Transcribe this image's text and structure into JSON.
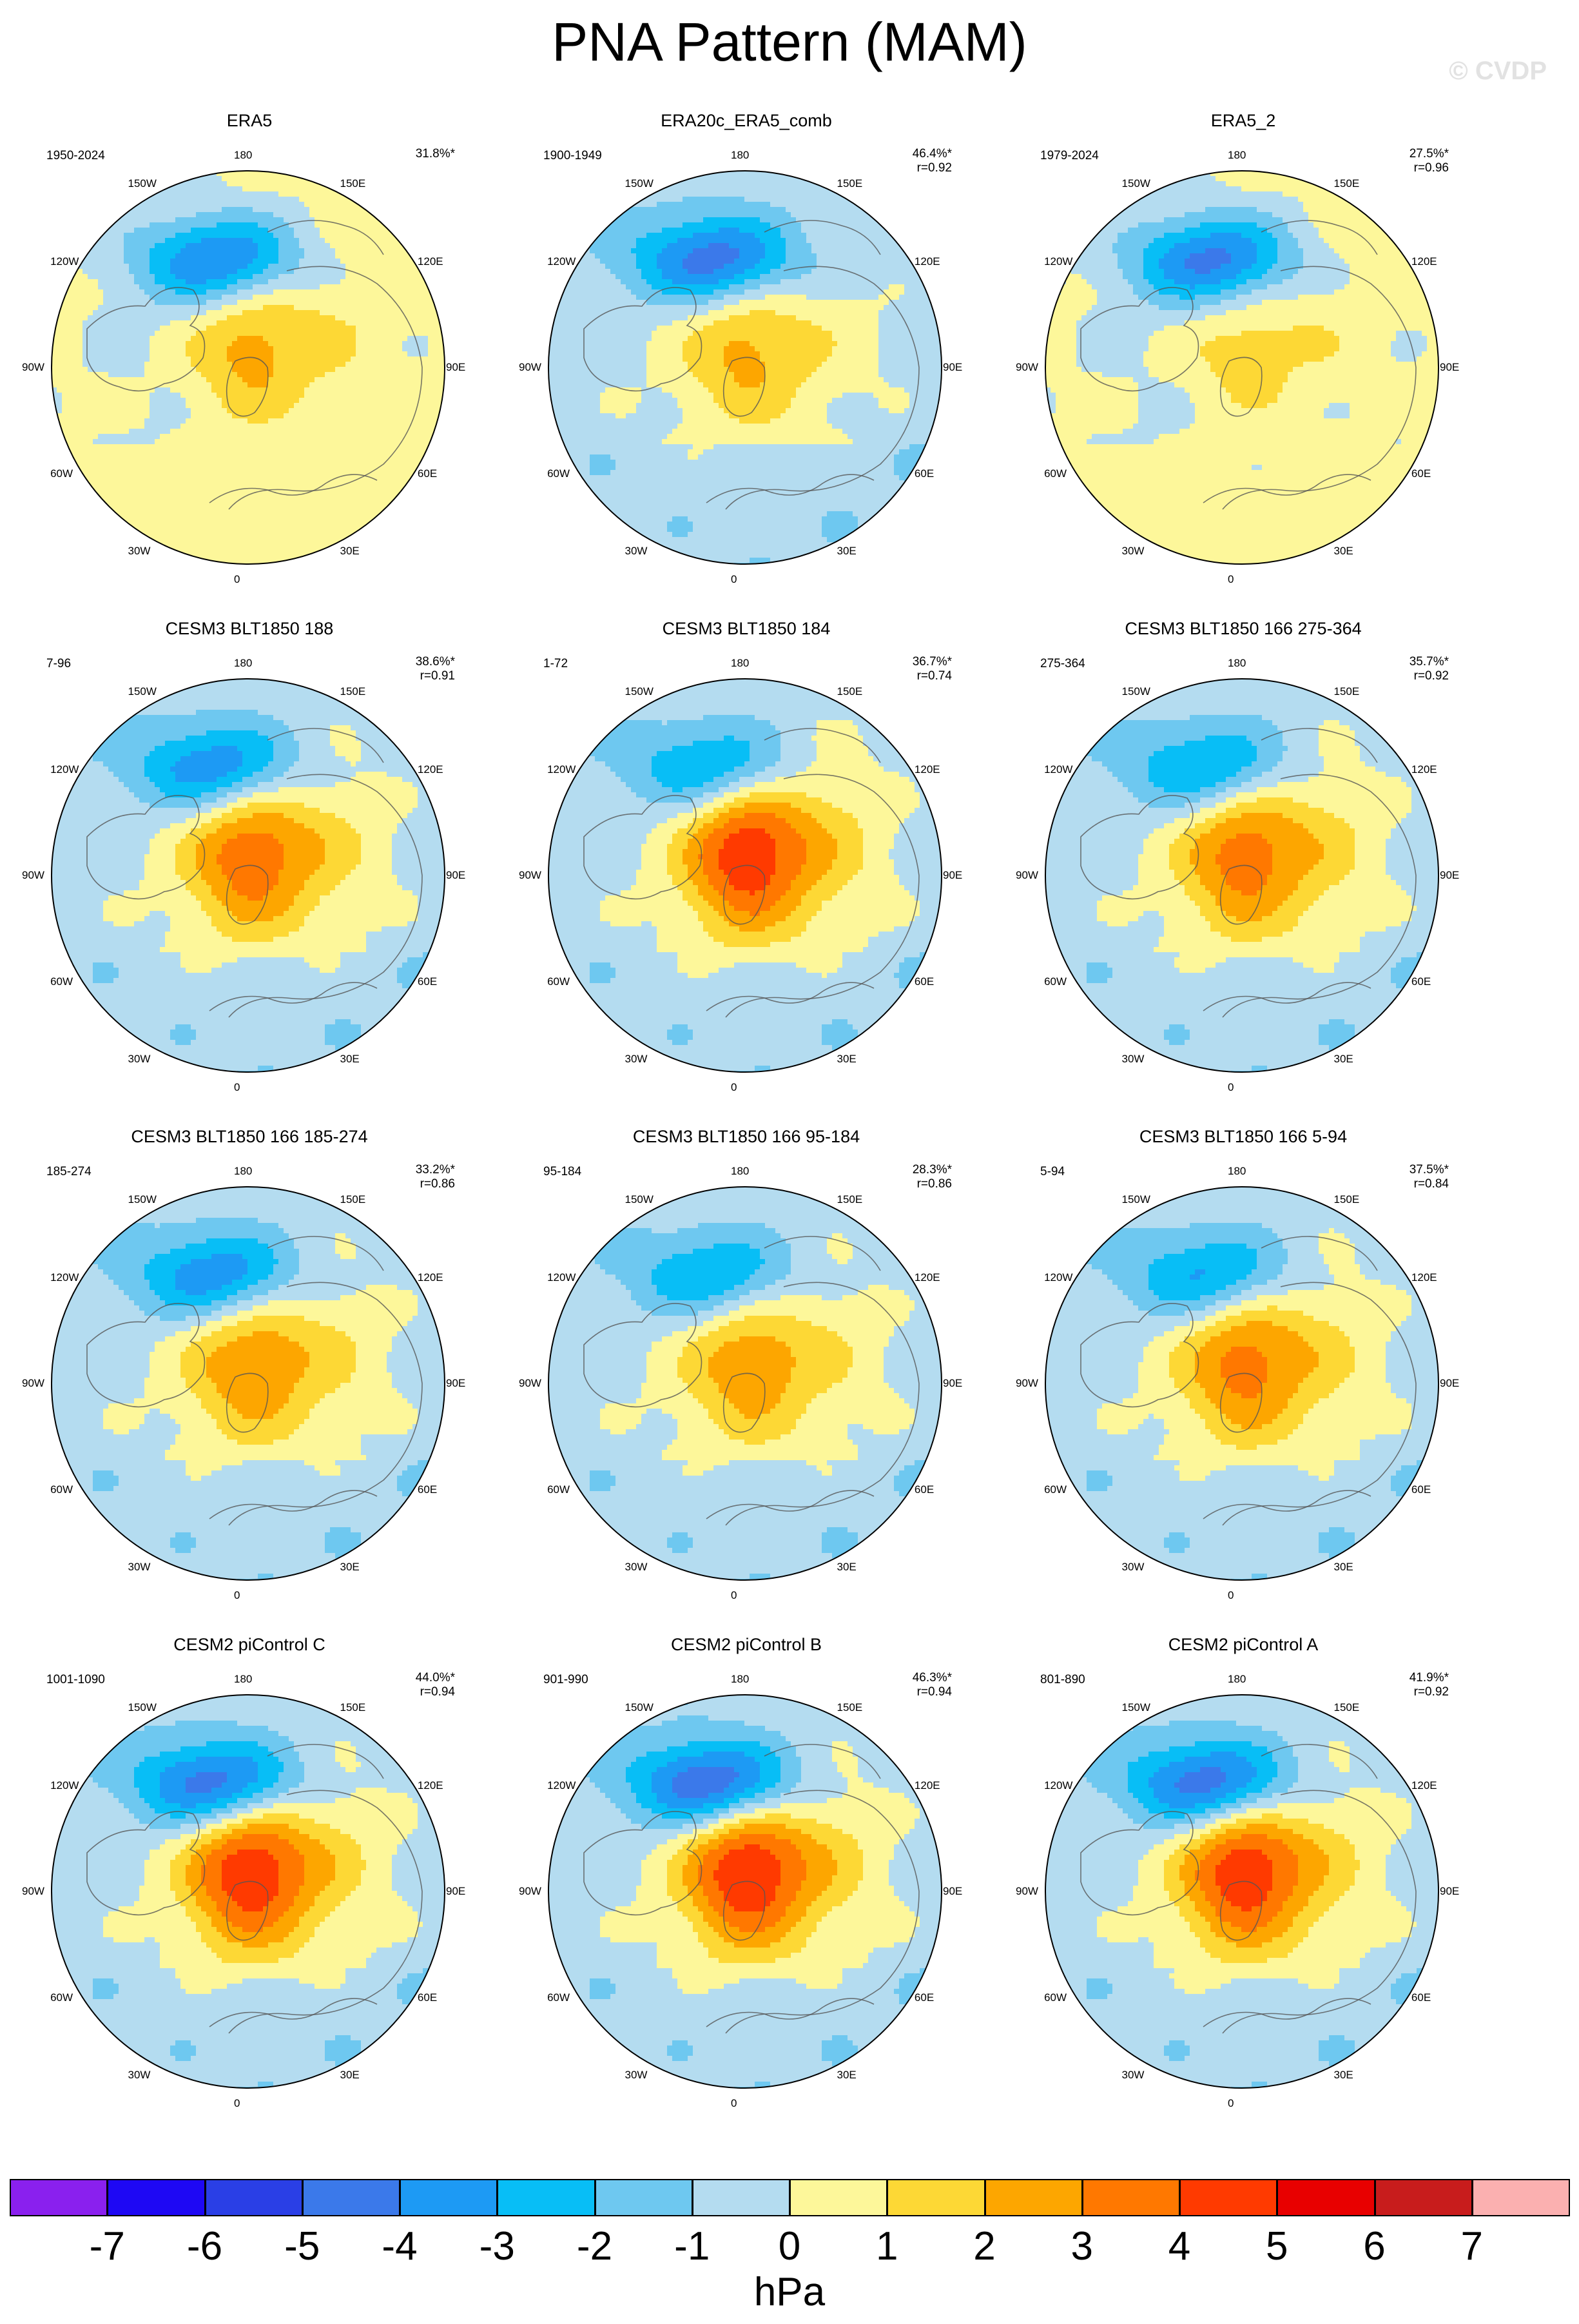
{
  "title": "PNA Pattern (MAM)",
  "watermark": "© CVDP",
  "colorbar": {
    "ticks": [
      "-7",
      "-6",
      "-5",
      "-4",
      "-3",
      "-2",
      "-1",
      "0",
      "1",
      "2",
      "3",
      "4",
      "5",
      "6",
      "7"
    ],
    "colors": [
      "#8a20ee",
      "#1e08f4",
      "#2a3fe6",
      "#3b79ea",
      "#1d9af4",
      "#08bef6",
      "#6ec8f0",
      "#b4dcf0",
      "#fdf79a",
      "#fdd835",
      "#fda600",
      "#ff7800",
      "#ff3a00",
      "#e80000",
      "#c81c1c",
      "#fbb0b0"
    ],
    "units": "hPa"
  },
  "colors": {
    "land_outline": "#555555",
    "map_border": "#000000",
    "background": "#ffffff"
  },
  "longitude_labels": [
    "180",
    "150E",
    "120E",
    "90E",
    "60E",
    "30E",
    "0",
    "30W",
    "60W",
    "90W",
    "120W",
    "150W"
  ],
  "panels": [
    {
      "title": "ERA5",
      "period": "1950-2024",
      "pct": "31.8%*",
      "r": "",
      "pattern": {
        "low": -4.5,
        "high": 2.5,
        "center_ne": 1.0,
        "far": "pos"
      }
    },
    {
      "title": "ERA20c_ERA5_comb",
      "period": "1900-1949",
      "pct": "46.4%*",
      "r": "r=0.92",
      "pattern": {
        "low": -4.8,
        "high": 2.3,
        "center_ne": 0.6,
        "far": "neg"
      }
    },
    {
      "title": "ERA5_2",
      "period": "1979-2024",
      "pct": "27.5%*",
      "r": "r=0.96",
      "pattern": {
        "low": -4.6,
        "high": 1.6,
        "center_ne": 0.8,
        "far": "pos"
      }
    },
    {
      "title": "CESM3 BLT1850 188",
      "period": "7-96",
      "pct": "38.6%*",
      "r": "r=0.91",
      "pattern": {
        "low": -4.2,
        "high": 3.6,
        "center_ne": 1.2,
        "far": "neg"
      }
    },
    {
      "title": "CESM3 BLT1850 184",
      "period": "1-72",
      "pct": "36.7%*",
      "r": "r=0.74",
      "pattern": {
        "low": -3.6,
        "high": 4.6,
        "center_ne": 1.5,
        "far": "neg"
      }
    },
    {
      "title": "CESM3 BLT1850 166 275-364",
      "period": "275-364",
      "pct": "35.7%*",
      "r": "r=0.92",
      "pattern": {
        "low": -3.6,
        "high": 3.4,
        "center_ne": 1.3,
        "far": "neg"
      }
    },
    {
      "title": "CESM3 BLT1850 166 185-274",
      "period": "185-274",
      "pct": "33.2%*",
      "r": "r=0.86",
      "pattern": {
        "low": -4.1,
        "high": 2.8,
        "center_ne": 1.1,
        "far": "neg"
      }
    },
    {
      "title": "CESM3 BLT1850 166 95-184",
      "period": "95-184",
      "pct": "28.3%*",
      "r": "r=0.86",
      "pattern": {
        "low": -3.4,
        "high": 2.6,
        "center_ne": 1.0,
        "far": "neg"
      }
    },
    {
      "title": "CESM3 BLT1850 166 5-94",
      "period": "5-94",
      "pct": "37.5%*",
      "r": "r=0.84",
      "pattern": {
        "low": -3.6,
        "high": 3.3,
        "center_ne": 1.2,
        "far": "neg"
      }
    },
    {
      "title": "CESM2 piControl C",
      "period": "1001-1090",
      "pct": "44.0%*",
      "r": "r=0.94",
      "pattern": {
        "low": -5.2,
        "high": 4.8,
        "center_ne": 1.3,
        "far": "neg"
      }
    },
    {
      "title": "CESM2 piControl B",
      "period": "901-990",
      "pct": "46.3%*",
      "r": "r=0.94",
      "pattern": {
        "low": -5.6,
        "high": 4.9,
        "center_ne": 1.4,
        "far": "neg"
      }
    },
    {
      "title": "CESM2 piControl A",
      "period": "801-890",
      "pct": "41.9%*",
      "r": "r=0.92",
      "pattern": {
        "low": -5.3,
        "high": 4.7,
        "center_ne": 1.3,
        "far": "neg"
      }
    }
  ],
  "chart_data": {
    "type": "heatmap",
    "title": "PNA Pattern (MAM)",
    "projection": "north polar stereographic",
    "units": "hPa",
    "contour_levels": [
      -7,
      -6,
      -5,
      -4,
      -3,
      -2,
      -1,
      0,
      1,
      2,
      3,
      4,
      5,
      6,
      7
    ],
    "panels": [
      {
        "name": "ERA5",
        "period": "1950-2024",
        "pct_variance": 31.8,
        "pattern_r": null,
        "north_pacific_min": -4.5,
        "arctic_max": 2.5
      },
      {
        "name": "ERA20c_ERA5_comb",
        "period": "1900-1949",
        "pct_variance": 46.4,
        "pattern_r": 0.92,
        "north_pacific_min": -4.8,
        "arctic_max": 2.3
      },
      {
        "name": "ERA5_2",
        "period": "1979-2024",
        "pct_variance": 27.5,
        "pattern_r": 0.96,
        "north_pacific_min": -4.6,
        "arctic_max": 1.6
      },
      {
        "name": "CESM3 BLT1850 188",
        "period": "7-96",
        "pct_variance": 38.6,
        "pattern_r": 0.91,
        "north_pacific_min": -4.2,
        "arctic_max": 3.6
      },
      {
        "name": "CESM3 BLT1850 184",
        "period": "1-72",
        "pct_variance": 36.7,
        "pattern_r": 0.74,
        "north_pacific_min": -3.6,
        "arctic_max": 4.6
      },
      {
        "name": "CESM3 BLT1850 166 275-364",
        "period": "275-364",
        "pct_variance": 35.7,
        "pattern_r": 0.92,
        "north_pacific_min": -3.6,
        "arctic_max": 3.4
      },
      {
        "name": "CESM3 BLT1850 166 185-274",
        "period": "185-274",
        "pct_variance": 33.2,
        "pattern_r": 0.86,
        "north_pacific_min": -4.1,
        "arctic_max": 2.8
      },
      {
        "name": "CESM3 BLT1850 166 95-184",
        "period": "95-184",
        "pct_variance": 28.3,
        "pattern_r": 0.86,
        "north_pacific_min": -3.4,
        "arctic_max": 2.6
      },
      {
        "name": "CESM3 BLT1850 166 5-94",
        "period": "5-94",
        "pct_variance": 37.5,
        "pattern_r": 0.84,
        "north_pacific_min": -3.6,
        "arctic_max": 3.3
      },
      {
        "name": "CESM2 piControl C",
        "period": "1001-1090",
        "pct_variance": 44.0,
        "pattern_r": 0.94,
        "north_pacific_min": -5.2,
        "arctic_max": 4.8
      },
      {
        "name": "CESM2 piControl B",
        "period": "901-990",
        "pct_variance": 46.3,
        "pattern_r": 0.94,
        "north_pacific_min": -5.6,
        "arctic_max": 4.9
      },
      {
        "name": "CESM2 piControl A",
        "period": "801-890",
        "pct_variance": 41.9,
        "pattern_r": 0.92,
        "north_pacific_min": -5.3,
        "arctic_max": 4.7
      }
    ]
  }
}
